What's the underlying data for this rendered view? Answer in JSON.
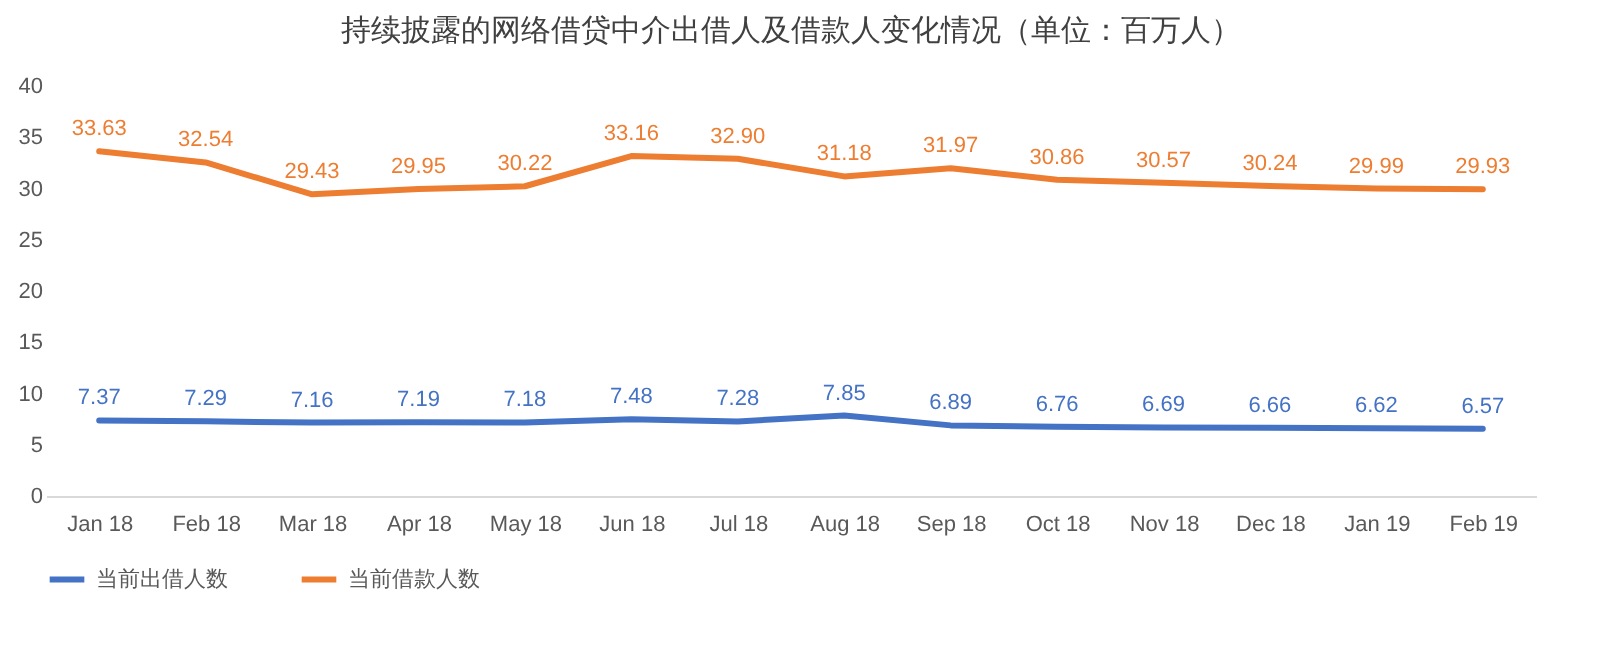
{
  "chart_data": {
    "type": "line",
    "title": "持续披露的网络借贷中介出借人及借款人变化情况（单位：百万人）",
    "categories": [
      "Jan 18",
      "Feb 18",
      "Mar 18",
      "Apr 18",
      "May 18",
      "Jun 18",
      "Jul 18",
      "Aug 18",
      "Sep 18",
      "Oct 18",
      "Nov 18",
      "Dec 18",
      "Jan 19",
      "Feb 19"
    ],
    "series": [
      {
        "name": "当前出借人数",
        "color": "#4472c4",
        "values": [
          7.37,
          7.29,
          7.16,
          7.19,
          7.18,
          7.48,
          7.28,
          7.85,
          6.89,
          6.76,
          6.69,
          6.66,
          6.62,
          6.57
        ],
        "value_labels": [
          "7.37",
          "7.29",
          "7.16",
          "7.19",
          "7.18",
          "7.48",
          "7.28",
          "7.85",
          "6.89",
          "6.76",
          "6.69",
          "6.66",
          "6.62",
          "6.57"
        ]
      },
      {
        "name": "当前借款人数",
        "color": "#ed7d31",
        "values": [
          33.63,
          32.54,
          29.43,
          29.95,
          30.22,
          33.16,
          32.9,
          31.18,
          31.97,
          30.86,
          30.57,
          30.24,
          29.99,
          29.93
        ],
        "value_labels": [
          "33.63",
          "32.54",
          "29.43",
          "29.95",
          "30.22",
          "33.16",
          "32.90",
          "31.18",
          "31.97",
          "30.86",
          "30.57",
          "30.24",
          "29.99",
          "29.93"
        ]
      }
    ],
    "ylim": [
      0,
      40
    ],
    "yticks": [
      0,
      5,
      10,
      15,
      20,
      25,
      30,
      35,
      40
    ],
    "data_labels": true,
    "legend": "bottom",
    "marker": "none",
    "line_style": "solid"
  }
}
